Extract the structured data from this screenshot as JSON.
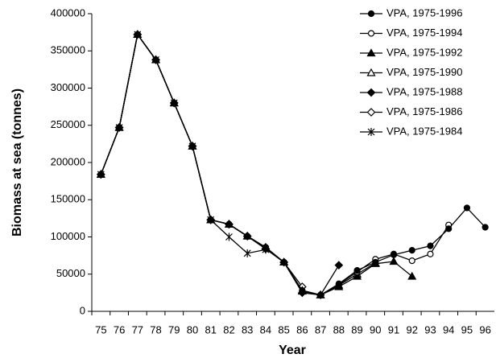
{
  "chart_data": {
    "type": "line",
    "x_label": "Year",
    "y_label": "Biomass at sea (tonnes)",
    "categories": [
      "75",
      "76",
      "77",
      "78",
      "79",
      "80",
      "81",
      "82",
      "83",
      "84",
      "85",
      "86",
      "87",
      "88",
      "89",
      "90",
      "91",
      "92",
      "93",
      "94",
      "95",
      "96"
    ],
    "ylim": [
      0,
      400000
    ],
    "yticks": [
      0,
      50000,
      100000,
      150000,
      200000,
      250000,
      300000,
      350000,
      400000
    ],
    "legend": "top-right",
    "series": [
      {
        "name": "VPA, 1975-1996",
        "color": "#000000",
        "marker": "circle-filled",
        "values": [
          184000,
          247000,
          372000,
          338000,
          280000,
          222000,
          123000,
          117000,
          101000,
          86000,
          66000,
          27000,
          22000,
          37000,
          55000,
          66000,
          76000,
          82000,
          88000,
          111000,
          139000,
          113000
        ]
      },
      {
        "name": "VPA, 1975-1994",
        "color": "#000000",
        "marker": "circle-open",
        "values": [
          184000,
          247000,
          372000,
          338000,
          280000,
          222000,
          123000,
          117000,
          101000,
          86000,
          66000,
          28000,
          22000,
          36000,
          53000,
          70000,
          77000,
          68000,
          77000,
          116000,
          null,
          null
        ]
      },
      {
        "name": "VPA, 1975-1992",
        "color": "#000000",
        "marker": "triangle-filled",
        "values": [
          184000,
          247000,
          372000,
          338000,
          280000,
          222000,
          123000,
          117000,
          101000,
          86000,
          66000,
          27000,
          22000,
          33000,
          47000,
          64000,
          67000,
          47000,
          null,
          null,
          null,
          null
        ]
      },
      {
        "name": "VPA, 1975-1990",
        "color": "#000000",
        "marker": "triangle-open",
        "values": [
          184000,
          247000,
          372000,
          338000,
          280000,
          222000,
          123000,
          117000,
          101000,
          86000,
          66000,
          28000,
          22000,
          35000,
          50000,
          65000,
          null,
          null,
          null,
          null,
          null,
          null
        ]
      },
      {
        "name": "VPA, 1975-1988",
        "color": "#000000",
        "marker": "diamond-filled",
        "values": [
          184000,
          247000,
          372000,
          338000,
          280000,
          222000,
          123000,
          117000,
          101000,
          84000,
          66000,
          25000,
          22000,
          62000,
          null,
          null,
          null,
          null,
          null,
          null,
          null,
          null
        ]
      },
      {
        "name": "VPA, 1975-1986",
        "color": "#000000",
        "marker": "diamond-open",
        "values": [
          184000,
          247000,
          372000,
          338000,
          280000,
          222000,
          123000,
          117000,
          101000,
          84000,
          66000,
          33000,
          null,
          null,
          null,
          null,
          null,
          null,
          null,
          null,
          null,
          null
        ]
      },
      {
        "name": "VPA, 1975-1984",
        "color": "#000000",
        "marker": "star",
        "values": [
          184000,
          247000,
          372000,
          338000,
          280000,
          222000,
          123000,
          100000,
          78000,
          83000,
          null,
          null,
          null,
          null,
          null,
          null,
          null,
          null,
          null,
          null,
          null,
          null
        ]
      }
    ]
  }
}
